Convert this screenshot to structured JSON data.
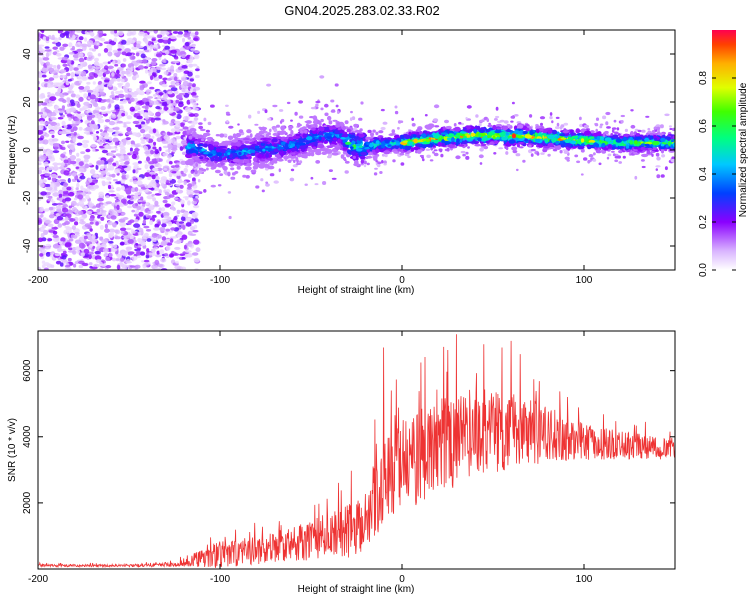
{
  "title": "GN04.2025.283.02.33.R02",
  "chart_data": [
    {
      "type": "heatmap",
      "name": "spectrogram",
      "xlabel": "Height of straight line (km)",
      "ylabel": "Frequency (Hz)",
      "xlim": [
        -200,
        150
      ],
      "ylim": [
        -50,
        50
      ],
      "xticks": [
        -200,
        -100,
        0,
        100
      ],
      "yticks": [
        -40,
        -20,
        0,
        20,
        40
      ],
      "colorbar": {
        "label": "Normalized spectral amplitude",
        "range": [
          0,
          1
        ],
        "ticks": [
          0.0,
          0.2,
          0.4,
          0.6,
          0.8
        ]
      },
      "ridge": [
        {
          "x": -120,
          "y": 2
        },
        {
          "x": -100,
          "y": -2
        },
        {
          "x": -80,
          "y": 0
        },
        {
          "x": -60,
          "y": 2
        },
        {
          "x": -45,
          "y": 6
        },
        {
          "x": -35,
          "y": 6
        },
        {
          "x": -25,
          "y": 1
        },
        {
          "x": -15,
          "y": 2
        },
        {
          "x": 0,
          "y": 3
        },
        {
          "x": 20,
          "y": 5
        },
        {
          "x": 40,
          "y": 6
        },
        {
          "x": 60,
          "y": 6
        },
        {
          "x": 80,
          "y": 5
        },
        {
          "x": 100,
          "y": 4
        },
        {
          "x": 120,
          "y": 3
        },
        {
          "x": 150,
          "y": 3
        }
      ]
    },
    {
      "type": "line",
      "name": "snr",
      "xlabel": "Height of straight line (km)",
      "ylabel": "SNR (10 * v/v)",
      "xlim": [
        -200,
        150
      ],
      "ylim": [
        0,
        7200
      ],
      "xticks": [
        -200,
        -100,
        0,
        100
      ],
      "yticks": [
        2000,
        4000,
        6000
      ],
      "color": "#ee3333",
      "envelope": [
        {
          "x": -200,
          "base": 100,
          "amp": 60
        },
        {
          "x": -150,
          "base": 100,
          "amp": 60
        },
        {
          "x": -125,
          "base": 120,
          "amp": 100
        },
        {
          "x": -110,
          "base": 300,
          "amp": 400
        },
        {
          "x": -100,
          "base": 400,
          "amp": 650
        },
        {
          "x": -80,
          "base": 500,
          "amp": 650
        },
        {
          "x": -60,
          "base": 700,
          "amp": 850
        },
        {
          "x": -45,
          "base": 900,
          "amp": 1000
        },
        {
          "x": -30,
          "base": 1000,
          "amp": 1300
        },
        {
          "x": -20,
          "base": 1400,
          "amp": 1700
        },
        {
          "x": -10,
          "base": 2500,
          "amp": 2000
        },
        {
          "x": 0,
          "base": 3000,
          "amp": 2100
        },
        {
          "x": 20,
          "base": 3500,
          "amp": 2300
        },
        {
          "x": 40,
          "base": 4000,
          "amp": 2100
        },
        {
          "x": 60,
          "base": 4100,
          "amp": 1900
        },
        {
          "x": 80,
          "base": 4000,
          "amp": 1300
        },
        {
          "x": 100,
          "base": 3800,
          "amp": 900
        },
        {
          "x": 120,
          "base": 3700,
          "amp": 650
        },
        {
          "x": 150,
          "base": 3600,
          "amp": 500
        }
      ],
      "spikes": [
        {
          "x": -10,
          "y": 6700
        },
        {
          "x": 30,
          "y": 7100
        },
        {
          "x": 45,
          "y": 6800
        },
        {
          "x": 55,
          "y": 6700
        },
        {
          "x": 60,
          "y": 6900
        },
        {
          "x": 65,
          "y": 6500
        }
      ]
    }
  ]
}
